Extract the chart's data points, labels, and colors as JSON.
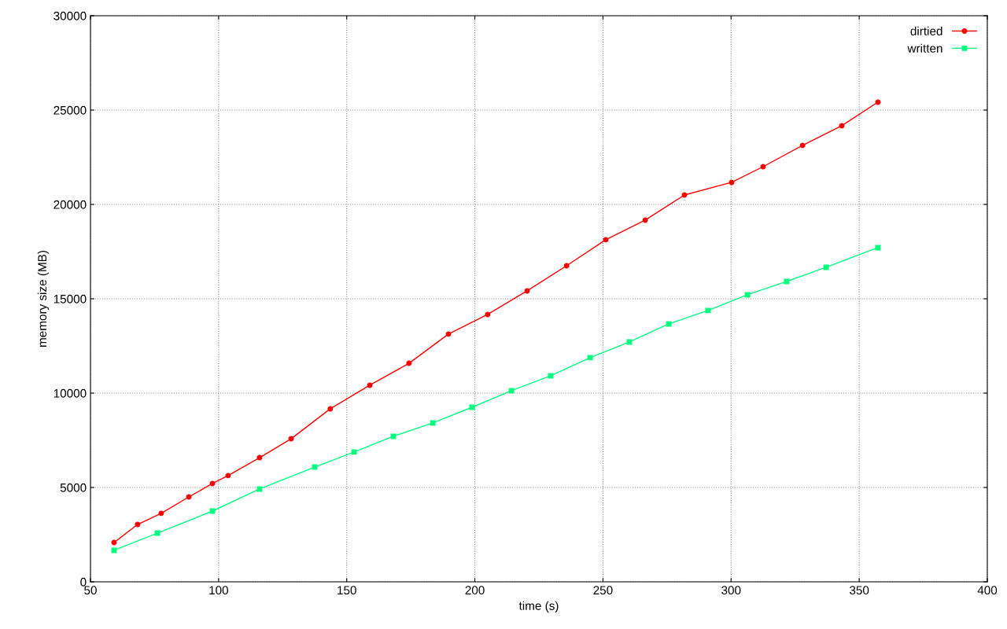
{
  "chart_data": {
    "type": "line",
    "xlabel": "time (s)",
    "ylabel": "memory size (MB)",
    "xlim": [
      50,
      400
    ],
    "xticks": [
      50,
      100,
      150,
      200,
      250,
      300,
      350,
      400
    ],
    "ylim": [
      0,
      30000
    ],
    "yticks": [
      0,
      5000,
      10000,
      15000,
      20000,
      25000,
      30000
    ],
    "grid": true,
    "legend": "top right",
    "line_style": "solid",
    "series": [
      {
        "name": "dirtied",
        "color": "#ff0000",
        "marker": "circle",
        "x": [
          59.2,
          68.4,
          77.6,
          88.4,
          97.6,
          103.7,
          116,
          128.3,
          143.6,
          159,
          174.3,
          189.7,
          205,
          220.4,
          235.8,
          251.1,
          266.5,
          281.8,
          300.2,
          312.5,
          327.9,
          343.2,
          357.3
        ],
        "values": [
          2080,
          3040,
          3630,
          4500,
          5210,
          5630,
          6580,
          7580,
          9170,
          10420,
          11580,
          13130,
          14170,
          15420,
          16750,
          18130,
          19170,
          20500,
          21170,
          22000,
          23130,
          24170,
          25420
        ]
      },
      {
        "name": "written",
        "color": "#00ff7f",
        "marker": "square",
        "x": [
          59.2,
          76.1,
          97.6,
          116,
          137.5,
          152.9,
          168.2,
          183.6,
          198.9,
          214.3,
          229.6,
          245,
          260.3,
          275.7,
          291,
          306.4,
          321.7,
          337.1,
          357.3
        ],
        "values": [
          1670,
          2580,
          3750,
          4920,
          6080,
          6880,
          7710,
          8420,
          9250,
          10130,
          10920,
          11880,
          12710,
          13670,
          14380,
          15210,
          15920,
          16670,
          17710
        ]
      }
    ]
  }
}
